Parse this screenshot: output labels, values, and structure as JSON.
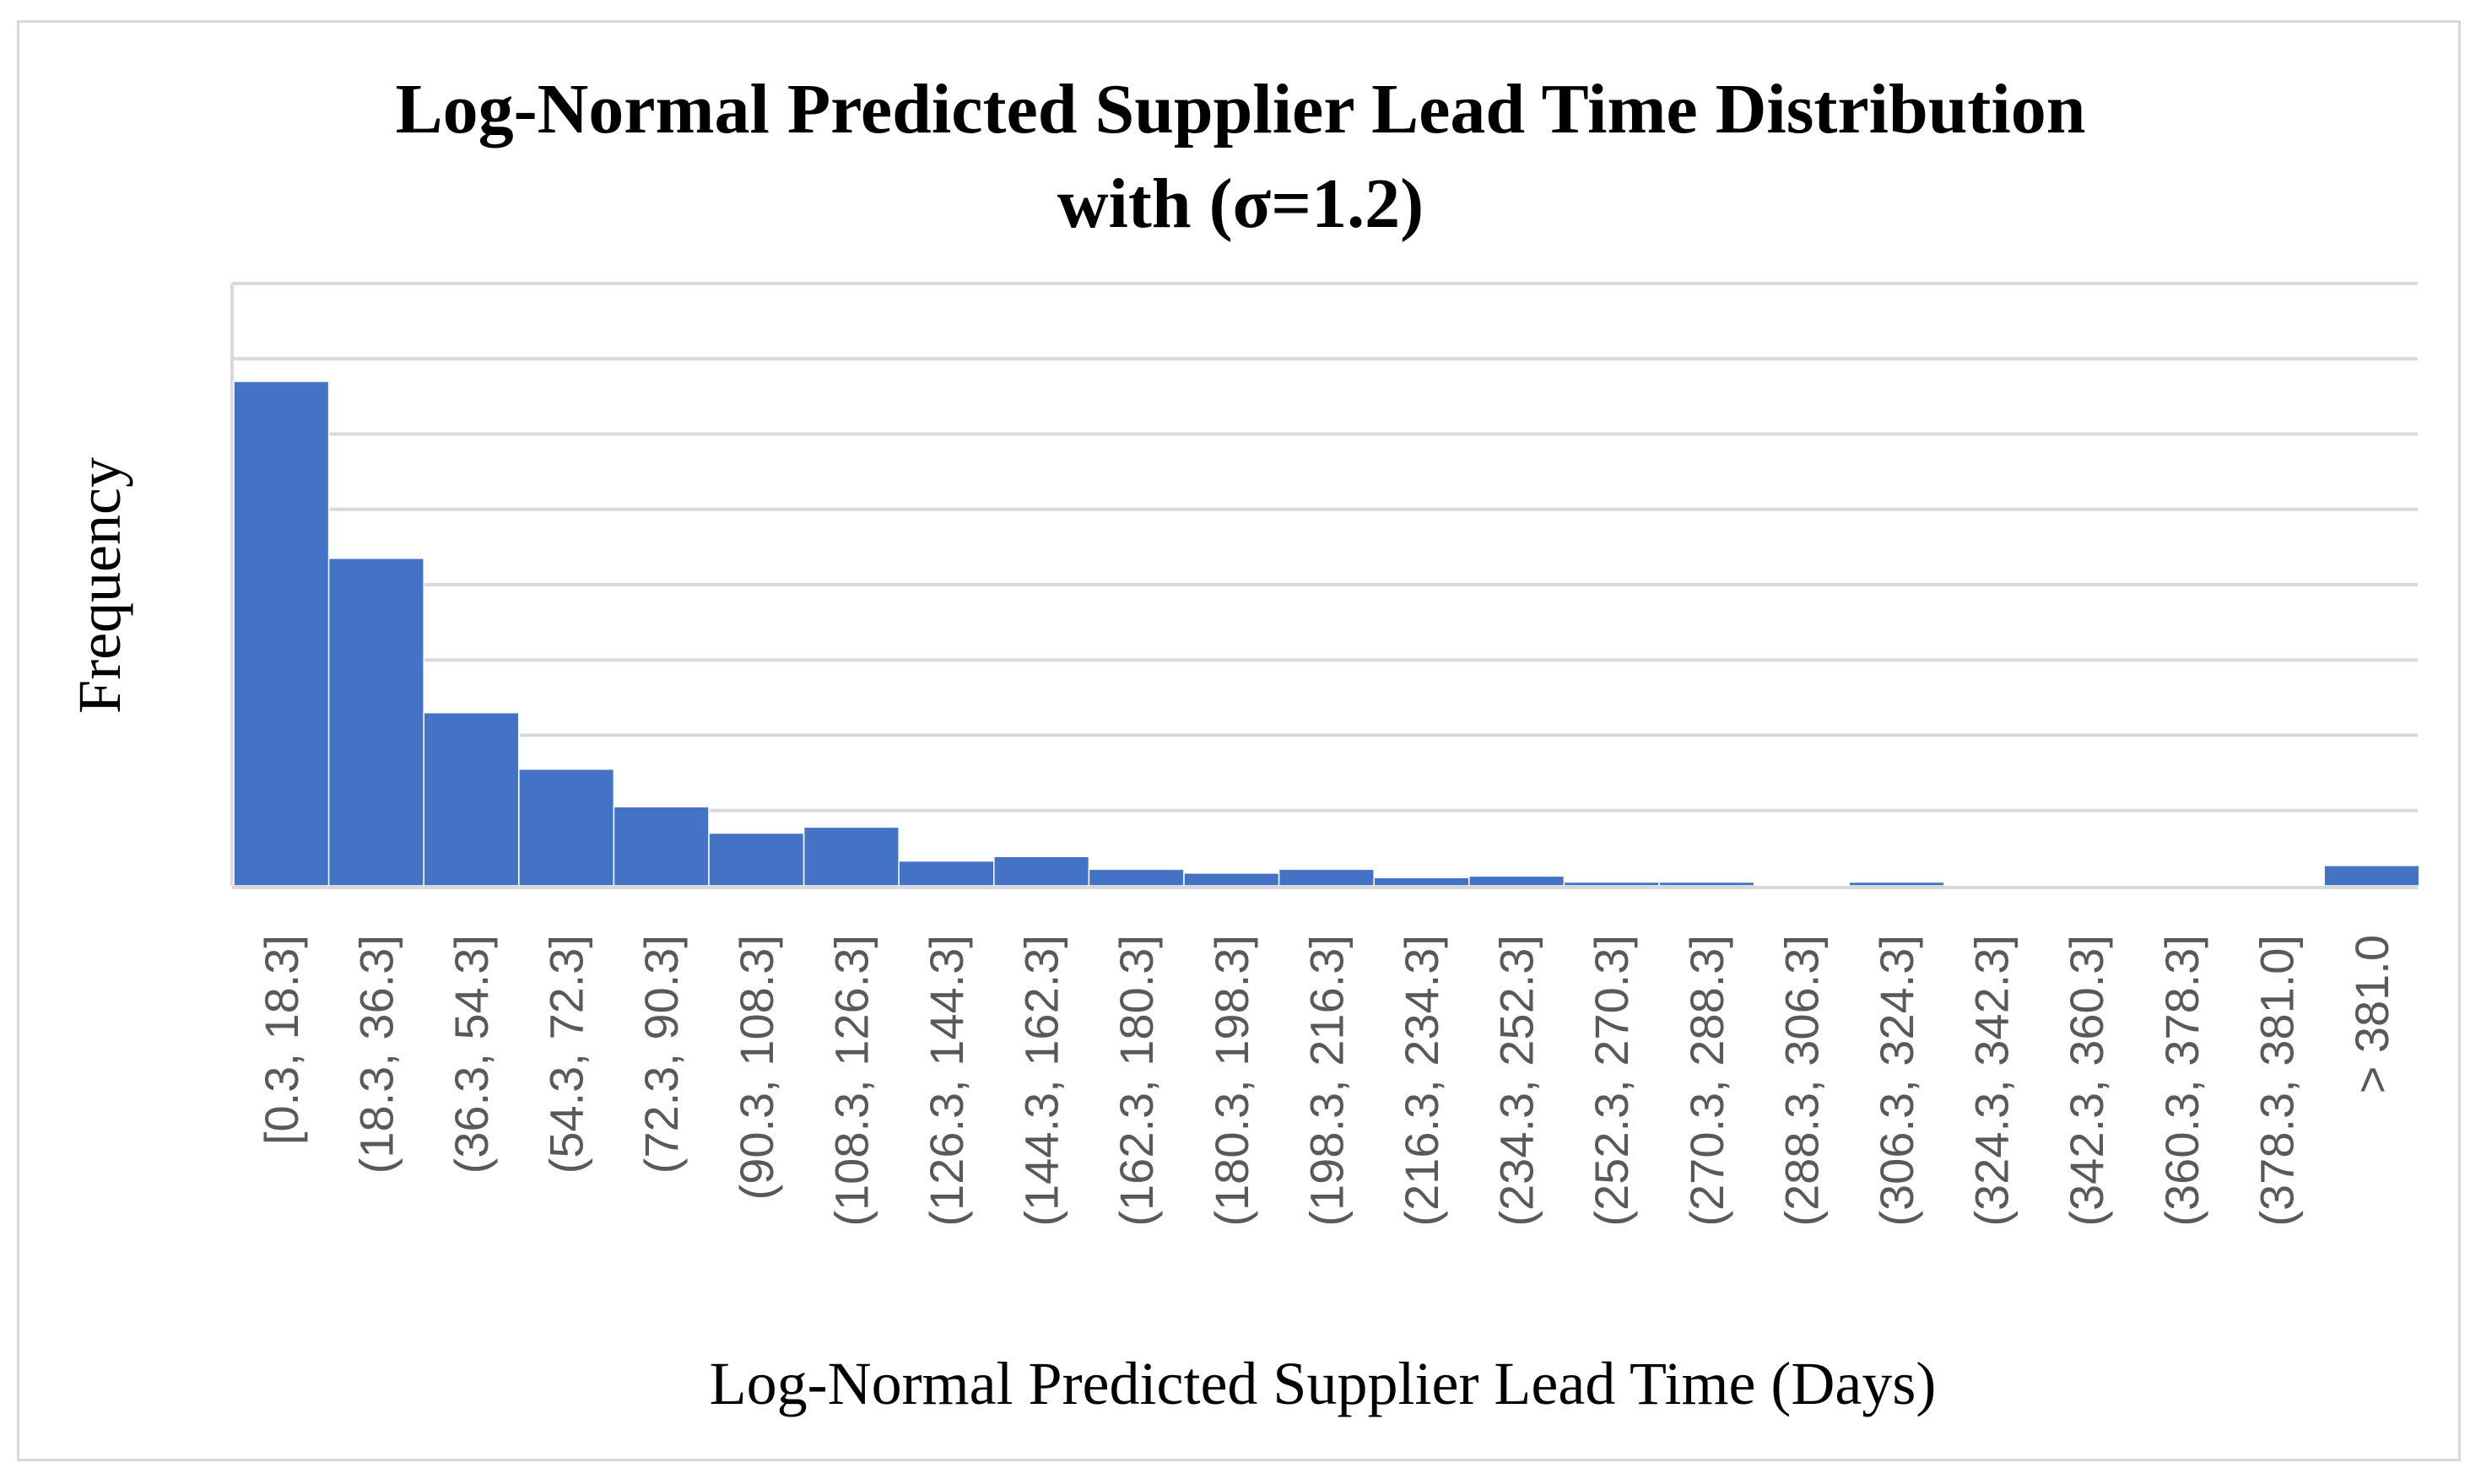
{
  "chart_data": {
    "type": "bar",
    "title": "Log-Normal Predicted Supplier Lead Time Distribution with (σ=1.2)",
    "title_lines": [
      "Log-Normal Predicted Supplier Lead Time Distribution",
      "with (σ=1.2)"
    ],
    "xlabel": "Log-Normal Predicted Supplier Lead Time (Days)",
    "ylabel": "Frequency",
    "categories": [
      "[0.3, 18.3]",
      "(18.3, 36.3]",
      "(36.3, 54.3]",
      "(54.3, 72.3]",
      "(72.3, 90.3]",
      "(90.3, 108.3]",
      "(108.3, 126.3]",
      "(126.3, 144.3]",
      "(144.3, 162.3]",
      "(162.3, 180.3]",
      "(180.3, 198.3]",
      "(198.3, 216.3]",
      "(216.3, 234.3]",
      "(234.3, 252.3]",
      "(252.3, 270.3]",
      "(270.3, 288.3]",
      "(288.3, 306.3]",
      "(306.3, 324.3]",
      "(324.3, 342.3]",
      "(342.3, 360.3]",
      "(360.3, 378.3]",
      "(378.3, 381.0]",
      "> 381.0"
    ],
    "values": [
      6.7,
      4.35,
      2.3,
      1.55,
      1.05,
      0.7,
      0.78,
      0.33,
      0.39,
      0.22,
      0.17,
      0.22,
      0.11,
      0.13,
      0.05,
      0.05,
      0,
      0.05,
      0,
      0,
      0,
      0,
      0.27
    ],
    "ylim": [
      0,
      8
    ],
    "y_gridlines": 8,
    "y_tick_labels_shown": false,
    "grid": true,
    "bar_color": "#4472c4",
    "gridline_color": "#d9d9d9"
  }
}
